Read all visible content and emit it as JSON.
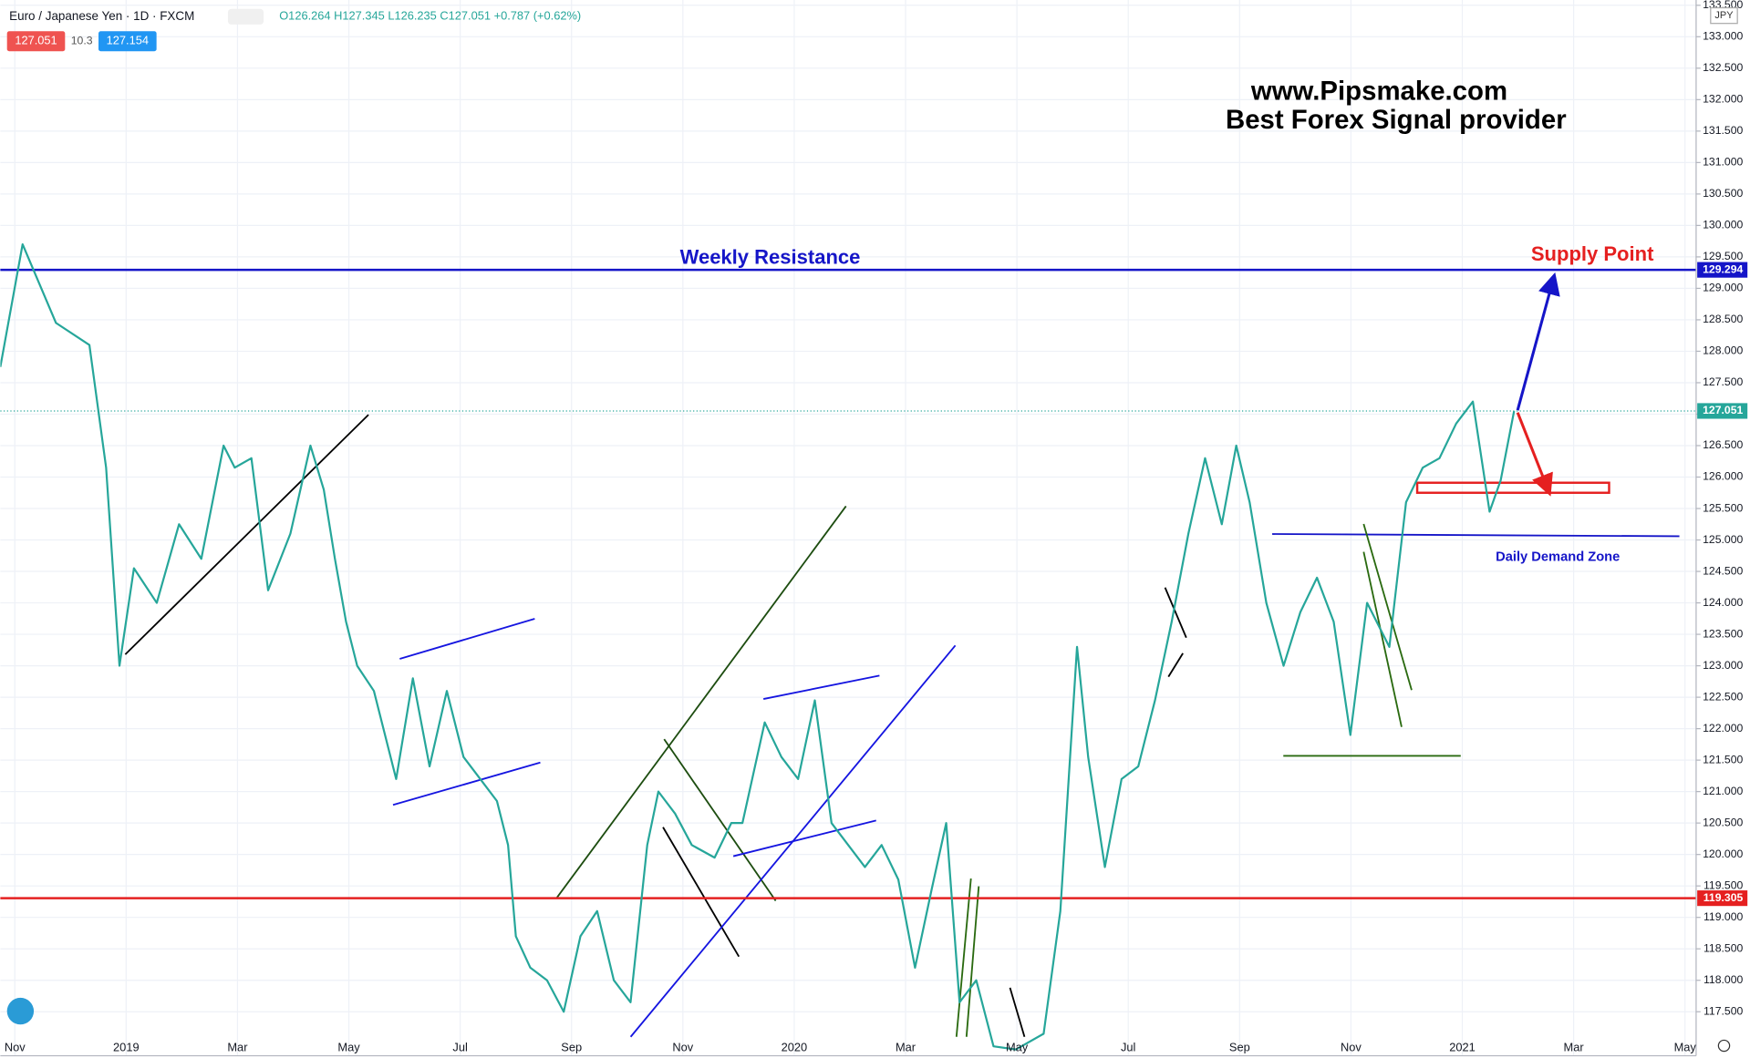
{
  "header": {
    "symbol": "Euro / Japanese Yen · 1D · FXCM",
    "ohlc": "O126.264 H127.345 L126.235 C127.051 +0.787 (+0.62%)",
    "sell": "127.051",
    "spread": "10.3",
    "buy": "127.154",
    "currency": "JPY"
  },
  "chart_data": {
    "type": "line",
    "annotations": [
      "www.Pipsmake.com",
      "Best Forex Signal provider",
      "Weekly Resistance",
      "Supply Point",
      "Daily Demand Zone"
    ],
    "x": [
      -0.26,
      0.14,
      0.74,
      1.34,
      1.64,
      1.88,
      2.14,
      2.55,
      2.95,
      3.35,
      3.75,
      3.95,
      4.25,
      4.55,
      4.95,
      5.31,
      5.55,
      5.75,
      5.95,
      6.15,
      6.45,
      6.85,
      7.15,
      7.45,
      7.76,
      8.06,
      8.36,
      8.66,
      8.86,
      9.0,
      9.26,
      9.56,
      9.86,
      10.16,
      10.46,
      10.76,
      11.06,
      11.36,
      11.56,
      11.86,
      12.16,
      12.57,
      12.87,
      13.07,
      13.47,
      13.77,
      14.07,
      14.37,
      14.67,
      14.97,
      15.27,
      15.57,
      15.87,
      16.17,
      16.47,
      16.73,
      16.97,
      17.27,
      17.58,
      17.98,
      18.48,
      18.78,
      19.08,
      19.28,
      19.58,
      19.88,
      20.18,
      20.48,
      20.78,
      21.08,
      21.38,
      21.68,
      21.94,
      22.18,
      22.48,
      22.79,
      23.09,
      23.39,
      23.69,
      23.99,
      24.29,
      24.69,
      24.99,
      25.29,
      25.59,
      25.89,
      26.19,
      26.49,
      26.69,
      26.93
    ],
    "series": [
      {
        "name": "EUR/JPY",
        "color": "#26a69a",
        "values": [
          127.75,
          129.7,
          128.45,
          128.1,
          126.15,
          123.0,
          124.55,
          124.0,
          125.25,
          124.7,
          126.5,
          126.15,
          126.3,
          124.2,
          125.1,
          126.5,
          125.8,
          124.7,
          123.7,
          123.0,
          122.6,
          121.2,
          122.8,
          121.4,
          122.6,
          121.55,
          121.2,
          120.85,
          120.15,
          118.7,
          118.2,
          118.0,
          117.5,
          118.7,
          119.1,
          118.0,
          117.65,
          120.15,
          121.0,
          120.65,
          120.15,
          119.95,
          120.5,
          120.5,
          122.1,
          121.55,
          121.2,
          122.45,
          120.5,
          120.15,
          119.8,
          120.15,
          119.6,
          118.2,
          119.45,
          120.5,
          117.65,
          118.0,
          116.95,
          116.9,
          117.15,
          119.1,
          123.3,
          121.55,
          119.8,
          121.2,
          121.4,
          122.45,
          123.7,
          125.1,
          126.3,
          125.25,
          126.5,
          125.6,
          124.0,
          123.0,
          123.85,
          124.4,
          123.7,
          121.9,
          124.0,
          123.3,
          125.6,
          126.15,
          126.3,
          126.85,
          127.2,
          125.45,
          125.95,
          127.05
        ]
      }
    ],
    "levels": [
      {
        "value": 129.294,
        "color": "#1515c8"
      },
      {
        "value": 127.051,
        "color": "#26a69a"
      },
      {
        "value": 119.305,
        "color": "#e52020"
      }
    ],
    "xlim": [
      -0.26,
      30.2
    ],
    "ylim": [
      116.8,
      133.584
    ],
    "xticks": [
      {
        "value": 0,
        "label": "Nov"
      },
      {
        "value": 2,
        "label": "2019"
      },
      {
        "value": 4,
        "label": "Mar"
      },
      {
        "value": 6,
        "label": "May"
      },
      {
        "value": 8,
        "label": "Jul"
      },
      {
        "value": 10,
        "label": "Sep"
      },
      {
        "value": 12,
        "label": "Nov"
      },
      {
        "value": 14,
        "label": "2020"
      },
      {
        "value": 16,
        "label": "Mar"
      },
      {
        "value": 18,
        "label": "May"
      },
      {
        "value": 20,
        "label": "Jul"
      },
      {
        "value": 22,
        "label": "Sep"
      },
      {
        "value": 24,
        "label": "Nov"
      },
      {
        "value": 26,
        "label": "2021"
      },
      {
        "value": 28,
        "label": "Mar"
      },
      {
        "value": 30,
        "label": "May"
      }
    ],
    "yticks": [
      {
        "value": 117.5,
        "label": "117.500"
      },
      {
        "value": 118,
        "label": "118.000"
      },
      {
        "value": 118.5,
        "label": "118.500"
      },
      {
        "value": 119,
        "label": "119.000"
      },
      {
        "value": 119.5,
        "label": "119.500"
      },
      {
        "value": 120,
        "label": "120.000"
      },
      {
        "value": 120.5,
        "label": "120.500"
      },
      {
        "value": 121,
        "label": "121.000"
      },
      {
        "value": 121.5,
        "label": "121.500"
      },
      {
        "value": 122,
        "label": "122.000"
      },
      {
        "value": 122.5,
        "label": "122.500"
      },
      {
        "value": 123,
        "label": "123.000"
      },
      {
        "value": 123.5,
        "label": "123.500"
      },
      {
        "value": 124,
        "label": "124.000"
      },
      {
        "value": 124.5,
        "label": "124.500"
      },
      {
        "value": 125,
        "label": "125.000"
      },
      {
        "value": 125.5,
        "label": "125.500"
      },
      {
        "value": 126,
        "label": "126.000"
      },
      {
        "value": 126.5,
        "label": "126.500"
      },
      {
        "value": 127,
        "label": "127.000"
      },
      {
        "value": 127.5,
        "label": "127.500"
      },
      {
        "value": 128,
        "label": "128.000"
      },
      {
        "value": 128.5,
        "label": "128.500"
      },
      {
        "value": 129,
        "label": "129.000"
      },
      {
        "value": 129.5,
        "label": "129.500"
      },
      {
        "value": 130,
        "label": "130.000"
      },
      {
        "value": 130.5,
        "label": "130.500"
      },
      {
        "value": 131,
        "label": "131.000"
      },
      {
        "value": 131.5,
        "label": "131.500"
      },
      {
        "value": 132,
        "label": "132.000"
      },
      {
        "value": 132.5,
        "label": "132.500"
      },
      {
        "value": 133,
        "label": "133.000"
      },
      {
        "value": 133.5,
        "label": "133.500"
      }
    ],
    "grid": true
  }
}
